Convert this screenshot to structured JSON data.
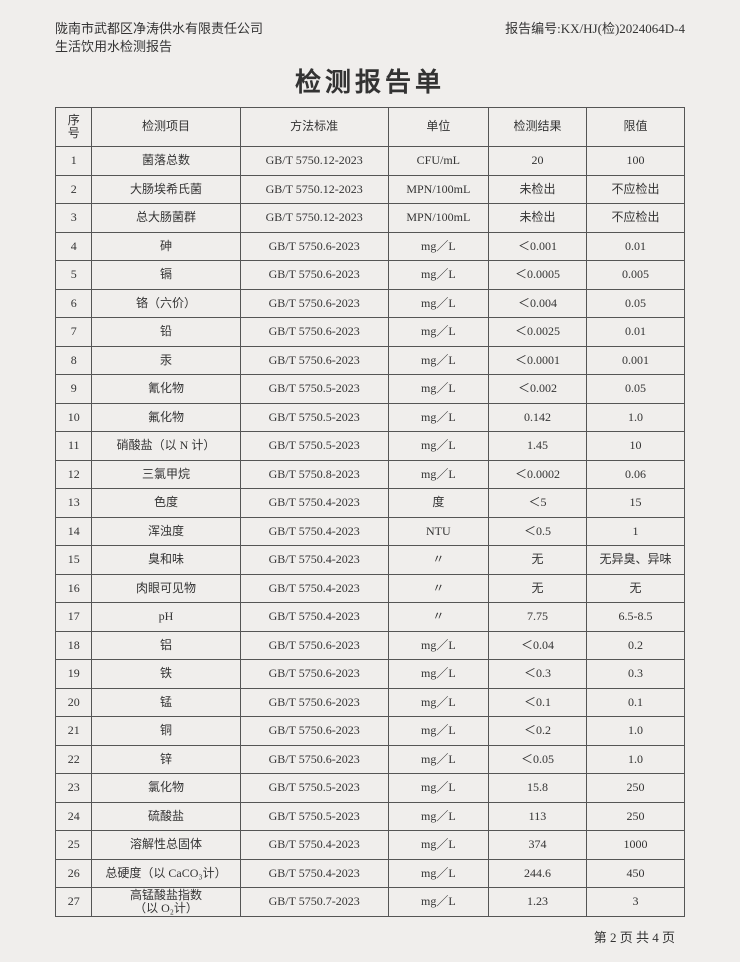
{
  "header": {
    "company": "陇南市武都区净涛供水有限责任公司",
    "doc_type": "生活饮用水检测报告",
    "report_no_label": "报告编号:",
    "report_no": "KX/HJ(检)2024064D-4"
  },
  "title": "检测报告单",
  "columns": [
    "序号",
    "检测项目",
    "方法标准",
    "单位",
    "检测结果",
    "限值"
  ],
  "rows": [
    [
      "1",
      "菌落总数",
      "GB/T 5750.12-2023",
      "CFU/mL",
      "20",
      "100"
    ],
    [
      "2",
      "大肠埃希氏菌",
      "GB/T 5750.12-2023",
      "MPN/100mL",
      "未检出",
      "不应检出"
    ],
    [
      "3",
      "总大肠菌群",
      "GB/T 5750.12-2023",
      "MPN/100mL",
      "未检出",
      "不应检出"
    ],
    [
      "4",
      "砷",
      "GB/T 5750.6-2023",
      "mg／L",
      "＜0.001",
      "0.01"
    ],
    [
      "5",
      "镉",
      "GB/T 5750.6-2023",
      "mg／L",
      "＜0.0005",
      "0.005"
    ],
    [
      "6",
      "铬（六价）",
      "GB/T 5750.6-2023",
      "mg／L",
      "＜0.004",
      "0.05"
    ],
    [
      "7",
      "铅",
      "GB/T 5750.6-2023",
      "mg／L",
      "＜0.0025",
      "0.01"
    ],
    [
      "8",
      "汞",
      "GB/T 5750.6-2023",
      "mg／L",
      "＜0.0001",
      "0.001"
    ],
    [
      "9",
      "氰化物",
      "GB/T 5750.5-2023",
      "mg／L",
      "＜0.002",
      "0.05"
    ],
    [
      "10",
      "氟化物",
      "GB/T 5750.5-2023",
      "mg／L",
      "0.142",
      "1.0"
    ],
    [
      "11",
      "硝酸盐（以 N 计）",
      "GB/T 5750.5-2023",
      "mg／L",
      "1.45",
      "10"
    ],
    [
      "12",
      "三氯甲烷",
      "GB/T 5750.8-2023",
      "mg／L",
      "＜0.0002",
      "0.06"
    ],
    [
      "13",
      "色度",
      "GB/T 5750.4-2023",
      "度",
      "＜5",
      "15"
    ],
    [
      "14",
      "浑浊度",
      "GB/T 5750.4-2023",
      "NTU",
      "＜0.5",
      "1"
    ],
    [
      "15",
      "臭和味",
      "GB/T 5750.4-2023",
      "〃",
      "无",
      "无异臭、异味"
    ],
    [
      "16",
      "肉眼可见物",
      "GB/T 5750.4-2023",
      "〃",
      "无",
      "无"
    ],
    [
      "17",
      "pH",
      "GB/T 5750.4-2023",
      "〃",
      "7.75",
      "6.5-8.5"
    ],
    [
      "18",
      "铝",
      "GB/T 5750.6-2023",
      "mg／L",
      "＜0.04",
      "0.2"
    ],
    [
      "19",
      "铁",
      "GB/T 5750.6-2023",
      "mg／L",
      "＜0.3",
      "0.3"
    ],
    [
      "20",
      "锰",
      "GB/T 5750.6-2023",
      "mg／L",
      "＜0.1",
      "0.1"
    ],
    [
      "21",
      "铜",
      "GB/T 5750.6-2023",
      "mg／L",
      "＜0.2",
      "1.0"
    ],
    [
      "22",
      "锌",
      "GB/T 5750.6-2023",
      "mg／L",
      "＜0.05",
      "1.0"
    ],
    [
      "23",
      "氯化物",
      "GB/T 5750.5-2023",
      "mg／L",
      "15.8",
      "250"
    ],
    [
      "24",
      "硫酸盐",
      "GB/T 5750.5-2023",
      "mg／L",
      "113",
      "250"
    ],
    [
      "25",
      "溶解性总固体",
      "GB/T 5750.4-2023",
      "mg／L",
      "374",
      "1000"
    ],
    [
      "26",
      "总硬度（以 CaCO₃计）",
      "GB/T 5750.4-2023",
      "mg／L",
      "244.6",
      "450"
    ],
    [
      "27",
      "高锰酸盐指数\n（以 O₂计）",
      "GB/T 5750.7-2023",
      "mg／L",
      "1.23",
      "3"
    ]
  ],
  "footer": "第 2 页 共 4 页"
}
